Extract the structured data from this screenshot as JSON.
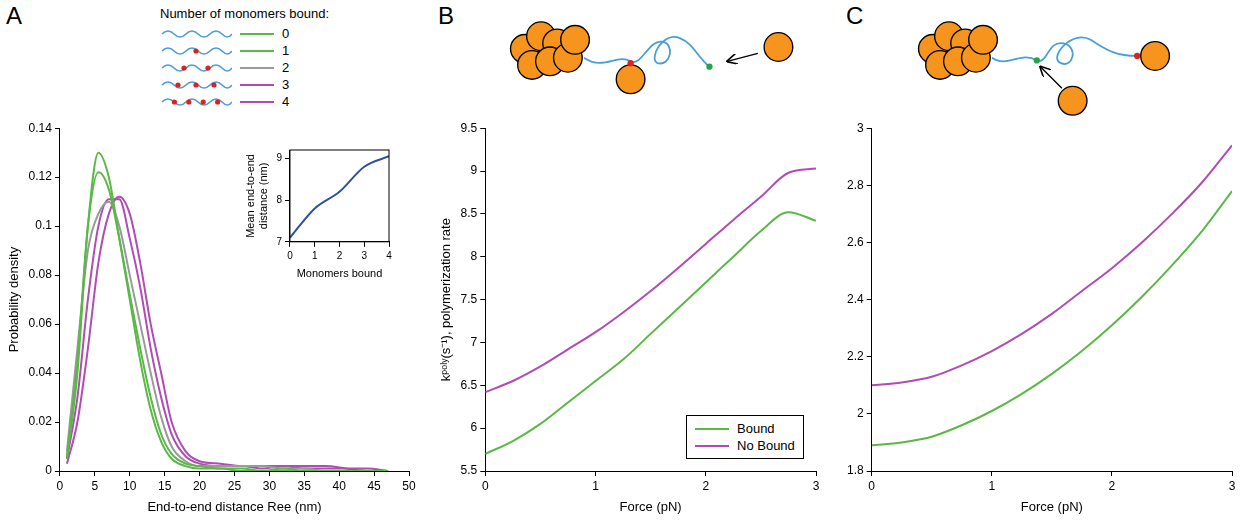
{
  "chart_data": [
    {
      "type": "line",
      "panel_label": "A",
      "x_label": "End-to-end distance Ree (nm)",
      "y_label": "Probability density",
      "legend": "top",
      "legend_title": "Number of monomers bound:",
      "grid": false,
      "marker": "none",
      "line_style": "solid",
      "x": [
        1,
        2.5,
        4,
        5.5,
        7,
        8.5,
        10,
        11.5,
        13,
        14.5,
        16,
        18,
        20,
        23,
        26,
        29,
        32,
        35,
        38,
        41,
        44,
        47
      ],
      "xlim": [
        0,
        50
      ],
      "xticks": [
        0,
        5,
        10,
        15,
        20,
        25,
        30,
        35,
        40,
        45,
        50
      ],
      "ylim": [
        0,
        0.14
      ],
      "yticks": [
        0,
        0.02,
        0.04,
        0.06,
        0.08,
        0.1,
        0.12,
        0.14
      ],
      "series": [
        {
          "name": "0",
          "color": "#5ab946",
          "values": [
            0.005,
            0.04,
            0.1,
            0.13,
            0.12,
            0.095,
            0.07,
            0.045,
            0.025,
            0.012,
            0.005,
            0.002,
            0.001,
            0.001,
            0,
            0,
            0,
            0,
            0,
            0,
            0,
            0
          ]
        },
        {
          "name": "1",
          "color": "#5ab946",
          "values": [
            0.006,
            0.045,
            0.1,
            0.122,
            0.115,
            0.095,
            0.072,
            0.05,
            0.03,
            0.015,
            0.007,
            0.003,
            0.002,
            0.001,
            0.001,
            0,
            0.001,
            0,
            0,
            0,
            0,
            0
          ]
        },
        {
          "name": "2",
          "color": "#9a9a9a",
          "values": [
            0.008,
            0.05,
            0.09,
            0.105,
            0.11,
            0.1,
            0.08,
            0.06,
            0.04,
            0.022,
            0.01,
            0.004,
            0.002,
            0.002,
            0.002,
            0.002,
            0.001,
            0.001,
            0,
            0,
            0,
            0
          ]
        },
        {
          "name": "3",
          "color": "#b04cb3",
          "values": [
            0.005,
            0.03,
            0.07,
            0.1,
            0.111,
            0.111,
            0.095,
            0.075,
            0.05,
            0.03,
            0.015,
            0.006,
            0.003,
            0.002,
            0.002,
            0.001,
            0.002,
            0.002,
            0.002,
            0.001,
            0,
            0
          ]
        },
        {
          "name": "4",
          "color": "#b04cb3",
          "values": [
            0.003,
            0.02,
            0.05,
            0.085,
            0.105,
            0.112,
            0.105,
            0.085,
            0.06,
            0.04,
            0.02,
            0.008,
            0.004,
            0.003,
            0.002,
            0.002,
            0.002,
            0.001,
            0.001,
            0.001,
            0.001,
            0
          ]
        }
      ],
      "inset": {
        "type": "line",
        "x_label": "Monomers bound",
        "y_label": "Mean end-to-end distance (nm)",
        "grid": false,
        "marker": "none",
        "line_style": "solid",
        "x": [
          0,
          1,
          2,
          3,
          4
        ],
        "xlim": [
          0,
          4
        ],
        "xticks": [
          0,
          1,
          2,
          3,
          4
        ],
        "ylim": [
          7,
          9.2
        ],
        "yticks": [
          7,
          8,
          9
        ],
        "series": [
          {
            "name": "Mean end-to-end distance (nm)",
            "color": "#2f4f9f",
            "values": [
              7.1,
              7.8,
              8.2,
              8.8,
              9.05
            ]
          }
        ]
      }
    },
    {
      "type": "line",
      "panel_label": "B",
      "x_label": "Force (pN)",
      "y_label": "kᵖᵒˡʸ(s⁻¹), polymerization rate",
      "legend": "lower right",
      "grid": false,
      "marker": "none",
      "line_style": "solid",
      "x": [
        0,
        0.25,
        0.5,
        0.75,
        1,
        1.25,
        1.5,
        1.75,
        2,
        2.25,
        2.5,
        2.75,
        3
      ],
      "xlim": [
        0,
        3
      ],
      "xticks": [
        0,
        1,
        2,
        3
      ],
      "ylim": [
        5.5,
        9.5
      ],
      "yticks": [
        5.5,
        6,
        6.5,
        7,
        7.5,
        8,
        8.5,
        9,
        9.5
      ],
      "series": [
        {
          "name": "Bound",
          "color": "#5ab946",
          "values": [
            5.7,
            5.85,
            6.05,
            6.3,
            6.55,
            6.8,
            7.1,
            7.4,
            7.7,
            8.0,
            8.3,
            8.52,
            8.42
          ]
        },
        {
          "name": "No Bound",
          "color": "#b04cb3",
          "values": [
            6.42,
            6.55,
            6.72,
            6.92,
            7.12,
            7.35,
            7.6,
            7.87,
            8.15,
            8.43,
            8.7,
            8.98,
            9.03
          ]
        }
      ]
    },
    {
      "type": "line",
      "panel_label": "C",
      "x_label": "Force (pN)",
      "grid": false,
      "marker": "none",
      "line_style": "solid",
      "x": [
        0,
        0.25,
        0.5,
        0.75,
        1,
        1.25,
        1.5,
        1.75,
        2,
        2.25,
        2.5,
        2.75,
        3
      ],
      "xlim": [
        0,
        3
      ],
      "xticks": [
        0,
        1,
        2,
        3
      ],
      "ylim": [
        1.8,
        3
      ],
      "yticks": [
        1.8,
        2,
        2.2,
        2.4,
        2.6,
        2.8,
        3
      ],
      "series": [
        {
          "name": "Bound",
          "color": "#5ab946",
          "values": [
            1.89,
            1.9,
            1.92,
            1.96,
            2.01,
            2.07,
            2.14,
            2.22,
            2.31,
            2.41,
            2.52,
            2.64,
            2.78
          ]
        },
        {
          "name": "No Bound",
          "color": "#b04cb3",
          "values": [
            2.1,
            2.11,
            2.13,
            2.17,
            2.22,
            2.28,
            2.35,
            2.43,
            2.51,
            2.6,
            2.7,
            2.81,
            2.94
          ]
        }
      ]
    }
  ]
}
